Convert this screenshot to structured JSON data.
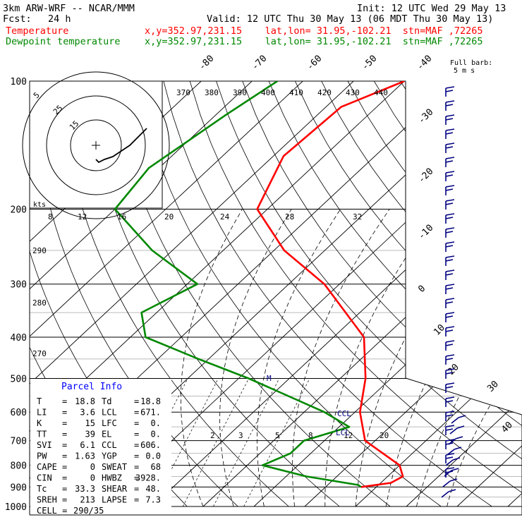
{
  "header": {
    "model": "3km ARW-WRF -- NCAR/MMM",
    "init": "Init: 12 UTC Wed 29 May 13",
    "fcst_label": "Fcst:",
    "fcst_value": "24 h",
    "valid": "Valid: 12 UTC Thu 30 May 13 (06 MDT Thu 30 May 13)",
    "temp_label": "Temperature",
    "temp_info": "x,y=352.97,231.15    lat,lon= 31.95,-102.21  stn=MAF ,72265",
    "dew_label": "Dewpoint temperature",
    "dew_info": "x,y=352.97,231.15    lat,lon= 31.95,-102.21  stn=MAF ,72265"
  },
  "colors": {
    "temperature": "#ff0000",
    "dewpoint": "#008800",
    "parcel_panel": "#ffffff",
    "parcel_title": "#0000ff",
    "barbs": "#000080"
  },
  "barb_legend": {
    "title": "Full barb:",
    "value": "5 m s"
  },
  "hodograph": {
    "ring_labels": [
      "5",
      "25",
      "15"
    ],
    "axis_label": "kts"
  },
  "parcel_info": {
    "title": "Parcel Info",
    "rows": [
      {
        "k1": "T",
        "v1": "18.8",
        "k2": "Td",
        "v2": "18.8"
      },
      {
        "k1": "LI",
        "v1": "3.6",
        "k2": "LCL",
        "v2": "671."
      },
      {
        "k1": "K",
        "v1": "15",
        "k2": "LFC",
        "v2": "0."
      },
      {
        "k1": "TT",
        "v1": "39",
        "k2": "EL",
        "v2": "0."
      },
      {
        "k1": "SVI",
        "v1": "6.1",
        "k2": "CCL",
        "v2": "606."
      },
      {
        "k1": "PW",
        "v1": "1.63",
        "k2": "YGP",
        "v2": "0.0"
      },
      {
        "k1": "CAPE",
        "v1": "0",
        "k2": "SWEAT",
        "v2": "68"
      },
      {
        "k1": "CIN",
        "v1": "0",
        "k2": "HWBZ",
        "v2": "3928."
      },
      {
        "k1": "Tc",
        "v1": "33.3",
        "k2": "SHEAR",
        "v2": "48."
      },
      {
        "k1": "SREH",
        "v1": "213",
        "k2": "LAPSE",
        "v2": "7.3"
      }
    ],
    "cell_label": "CELL =",
    "cell_value": "290/35"
  },
  "chart_data": {
    "type": "skew-t log-p sounding",
    "pressure_axis": {
      "label_ticks": [
        100,
        200,
        300,
        400,
        500,
        600,
        700,
        800,
        900,
        1000
      ],
      "extra_lines": [
        250,
        350,
        450,
        550,
        650,
        750,
        850,
        950
      ]
    },
    "temperature_ticks": [
      -80,
      -70,
      -60,
      -50,
      -40,
      -30,
      -20,
      -10,
      0,
      10,
      20,
      30,
      40
    ],
    "theta_labels_top": [
      "370",
      "380",
      "390",
      "400",
      "410",
      "420",
      "430",
      "440"
    ],
    "mixing_ratio_labels_top": [
      "8",
      "12",
      "16",
      "20",
      "24",
      "28",
      "32"
    ],
    "mixing_ratio_labels_bottom": [
      "2",
      "3",
      "5",
      "8",
      "12",
      "20"
    ],
    "theta_labels_left": [
      "290",
      "280",
      "270"
    ],
    "annotations": [
      "CCL",
      "LCL",
      "M"
    ],
    "series": [
      {
        "name": "Temperature",
        "color": "#ff0000",
        "points": [
          [
            100,
            -60
          ],
          [
            115,
            -67
          ],
          [
            150,
            -68
          ],
          [
            200,
            -62
          ],
          [
            250,
            -48
          ],
          [
            300,
            -33
          ],
          [
            400,
            -14
          ],
          [
            500,
            -5
          ],
          [
            600,
            1
          ],
          [
            700,
            8
          ],
          [
            800,
            20
          ],
          [
            850,
            23
          ],
          [
            880,
            22
          ],
          [
            900,
            17
          ]
        ]
      },
      {
        "name": "Dewpoint temperature",
        "color": "#008800",
        "points": [
          [
            100,
            -85
          ],
          [
            120,
            -88
          ],
          [
            160,
            -92
          ],
          [
            200,
            -90
          ],
          [
            250,
            -74
          ],
          [
            300,
            -58
          ],
          [
            350,
            -63
          ],
          [
            400,
            -57
          ],
          [
            450,
            -42
          ],
          [
            500,
            -28
          ],
          [
            600,
            -6
          ],
          [
            650,
            2
          ],
          [
            700,
            -4
          ],
          [
            750,
            -4
          ],
          [
            800,
            -7
          ],
          [
            850,
            4
          ],
          [
            890,
            16
          ],
          [
            900,
            17
          ]
        ]
      }
    ],
    "hodograph_trace_kts": [
      [
        0,
        -5
      ],
      [
        1,
        -6
      ],
      [
        3,
        -5
      ],
      [
        6,
        -4
      ],
      [
        9,
        -2
      ],
      [
        12,
        0
      ],
      [
        16,
        4
      ],
      [
        18,
        6
      ]
    ]
  }
}
